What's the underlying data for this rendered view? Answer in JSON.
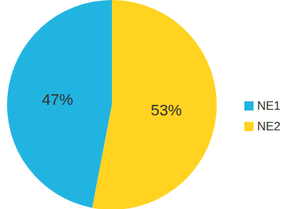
{
  "chart_data": {
    "type": "pie",
    "categories": [
      "NE1",
      "NE2"
    ],
    "values": [
      47,
      53
    ],
    "value_labels": [
      "47%",
      "53%"
    ],
    "colors": [
      "#22b4e0",
      "#ffd320"
    ],
    "data_labels": true,
    "legend": "right"
  }
}
